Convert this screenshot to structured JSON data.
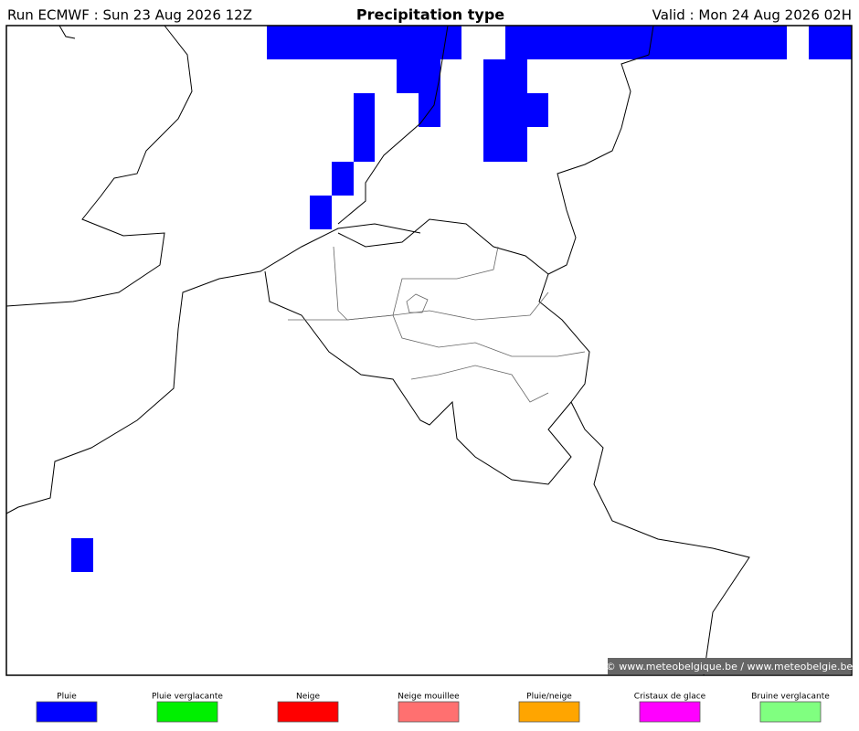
{
  "header": {
    "run": "Run ECMWF : Sun 23 Aug 2026 12Z",
    "title": "Precipitation type",
    "valid": "Valid : Mon 24 Aug 2026 02H"
  },
  "map": {
    "credit": "© www.meteobelgique.be / www.meteobelgie.be"
  },
  "legend": {
    "items": [
      {
        "label": "Pluie",
        "color": "#0000ff"
      },
      {
        "label": "Pluie verglacante",
        "color": "#00f000"
      },
      {
        "label": "Neige",
        "color": "#ff0000"
      },
      {
        "label": "Neige mouillee",
        "color": "#ff7070"
      },
      {
        "label": "Pluie/neige",
        "color": "#ffa500"
      },
      {
        "label": "Cristaux de glace",
        "color": "#ff00ff"
      },
      {
        "label": "Bruine verglacante",
        "color": "#80ff80"
      }
    ]
  }
}
